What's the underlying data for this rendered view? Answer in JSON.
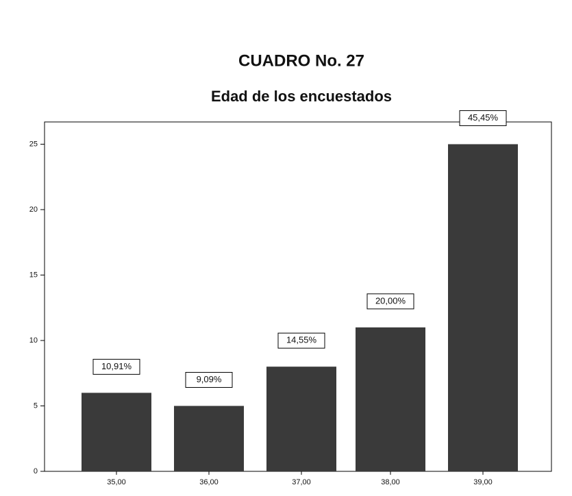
{
  "chart_data": {
    "type": "bar",
    "title": "CUADRO No. 27",
    "subtitle": "Edad de los encuestados",
    "categories": [
      "35,00",
      "36,00",
      "37,00",
      "38,00",
      "39,00"
    ],
    "values": [
      6,
      5,
      8,
      11,
      25
    ],
    "bar_labels": [
      "10,91%",
      "9,09%",
      "14,55%",
      "20,00%",
      "45,45%"
    ],
    "color": "#3a3a3a",
    "ylim": [
      0,
      26.7
    ],
    "yticks": [
      0,
      5,
      10,
      15,
      20,
      25
    ],
    "grid": false
  }
}
